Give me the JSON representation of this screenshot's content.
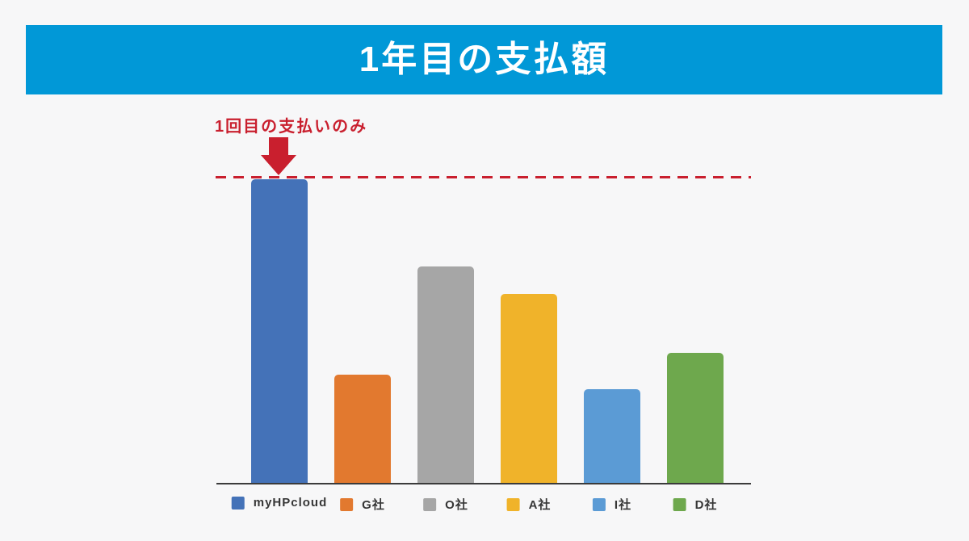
{
  "header": {
    "title": "1年目の支払額"
  },
  "annotation": {
    "label": "1回目の支払いのみ",
    "arrow_icon": "down-arrow-icon",
    "points_to_category": "myHPcloud",
    "dashed_line_meaning": "level of the first (myHPcloud) bar top"
  },
  "colors": {
    "background": "#f7f7f8",
    "header_blue": "#0198d7",
    "accent_red": "#c91f2e",
    "axis": "#3b3b3b",
    "legend_text": "#363636"
  },
  "chart_data": {
    "type": "bar",
    "title": "1年目の支払額",
    "categories": [
      "myHPcloud",
      "G社",
      "O社",
      "A社",
      "I社",
      "D社"
    ],
    "values": [
      100,
      36,
      71.4,
      62.4,
      31.2,
      43.1
    ],
    "value_unit": "relative bar height % (no value axis labels shown in image)",
    "series_colors": [
      "#4472b8",
      "#e2792f",
      "#a6a6a6",
      "#f0b32a",
      "#5b9bd5",
      "#6ea84d"
    ],
    "annotation": "1回目の支払いのみ",
    "annotation_target_category": "myHPcloud",
    "legend_position": "bottom",
    "grid": false,
    "y_axis_shown": false,
    "x_axis_line": true
  }
}
